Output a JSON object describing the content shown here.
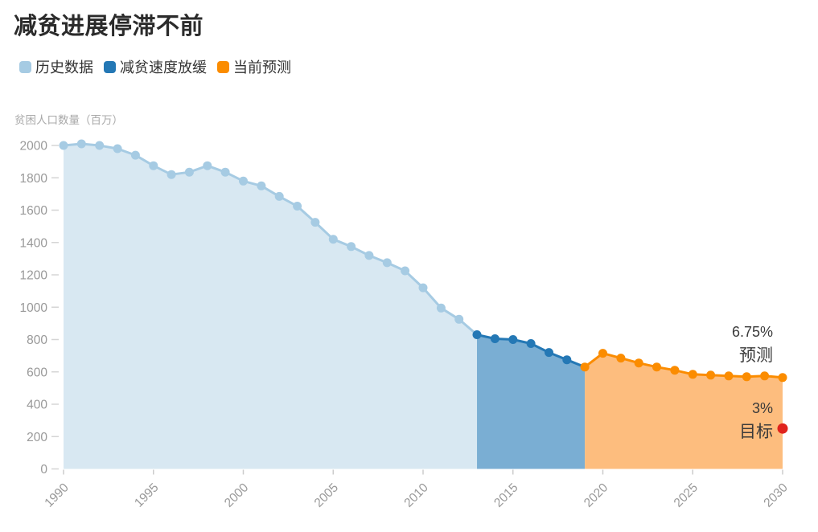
{
  "title": "减贫进展停滞不前",
  "legend": [
    {
      "key": "historical",
      "label": "历史数据",
      "color": "#a6cbe3"
    },
    {
      "key": "slowdown",
      "label": "减贫速度放缓",
      "color": "#2478b5"
    },
    {
      "key": "forecast",
      "label": "当前预测",
      "color": "#fb8c00"
    }
  ],
  "chart_data": {
    "type": "area",
    "title": "减贫进展停滞不前",
    "ylabel": "贫困人口数量（百万）",
    "xlabel": "",
    "xlim": [
      1990,
      2030
    ],
    "ylim": [
      0,
      2000
    ],
    "yticks": [
      0,
      200,
      400,
      600,
      800,
      1000,
      1200,
      1400,
      1600,
      1800,
      2000
    ],
    "xticks": [
      1990,
      1995,
      2000,
      2005,
      2010,
      2015,
      2020,
      2025,
      2030
    ],
    "grid": false,
    "legend_position": "top-left",
    "series": [
      {
        "key": "historical",
        "name": "历史数据",
        "line_color": "#a6cbe3",
        "fill_color": "#d8e8f2",
        "x": [
          1990,
          1991,
          1992,
          1993,
          1994,
          1995,
          1996,
          1997,
          1998,
          1999,
          2000,
          2001,
          2002,
          2003,
          2004,
          2005,
          2006,
          2007,
          2008,
          2009,
          2010,
          2011,
          2012,
          2013
        ],
        "values": [
          2000,
          2010,
          2000,
          1980,
          1940,
          1875,
          1820,
          1835,
          1875,
          1835,
          1780,
          1750,
          1685,
          1625,
          1525,
          1420,
          1375,
          1320,
          1275,
          1225,
          1120,
          995,
          925,
          830
        ]
      },
      {
        "key": "slowdown",
        "name": "减贫速度放缓",
        "line_color": "#2478b5",
        "fill_color": "#7aaed3",
        "x": [
          2013,
          2014,
          2015,
          2016,
          2017,
          2018,
          2019
        ],
        "values": [
          830,
          805,
          800,
          775,
          720,
          675,
          630
        ]
      },
      {
        "key": "forecast",
        "name": "当前预测",
        "line_color": "#fb8c00",
        "fill_color": "#fdbd7e",
        "x": [
          2019,
          2020,
          2021,
          2022,
          2023,
          2024,
          2025,
          2026,
          2027,
          2028,
          2029,
          2030
        ],
        "values": [
          630,
          715,
          685,
          655,
          630,
          610,
          585,
          580,
          575,
          570,
          575,
          565
        ]
      }
    ],
    "annotations": [
      {
        "key": "forecast-label",
        "lines": [
          "6.75%",
          "预测"
        ],
        "x": 2030,
        "value": 818,
        "color": "#3a3a3a"
      },
      {
        "key": "target-label",
        "lines": [
          "3%",
          "目标"
        ],
        "x": 2030,
        "value": 345,
        "color": "#3a3a3a"
      }
    ],
    "target_point": {
      "x": 2030,
      "value": 250,
      "color": "#e0231c"
    }
  }
}
